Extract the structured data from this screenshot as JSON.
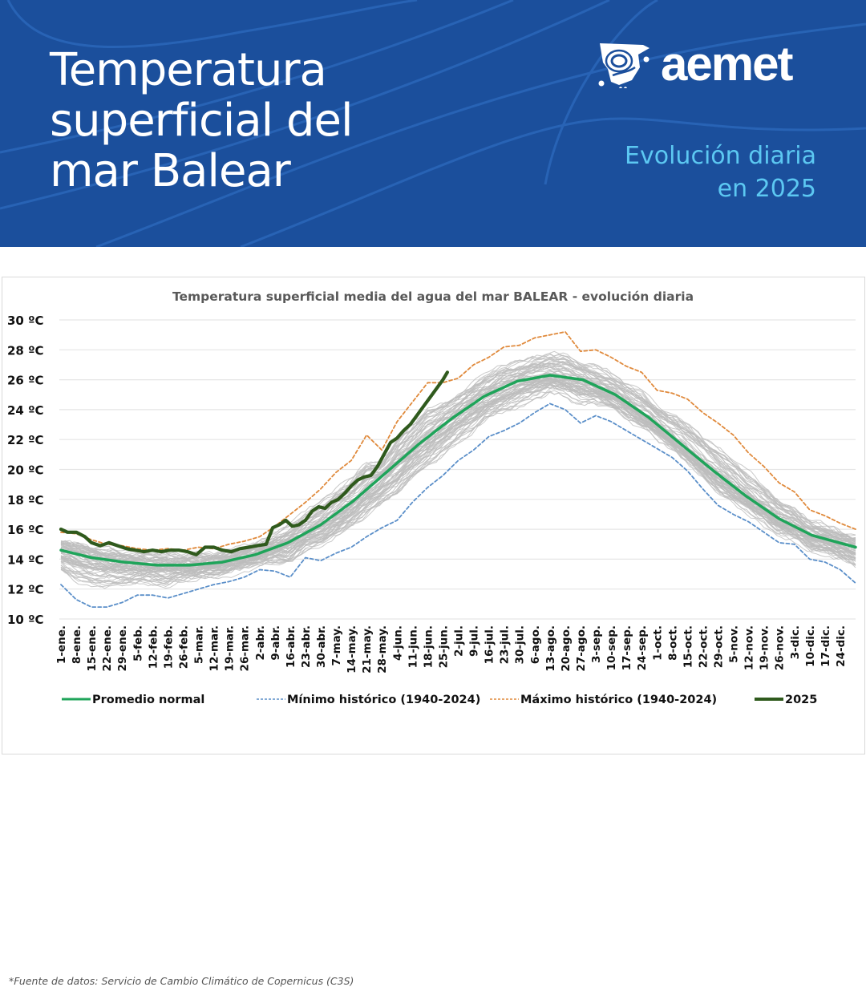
{
  "header": {
    "title_lines": [
      "Temperatura",
      "superficial del",
      "mar Balear"
    ],
    "logo_text": "aemet",
    "logo_icon": "aemet-spain-map-logo-icon",
    "subtitle_lines": [
      "Evolución diaria",
      "en 2025"
    ],
    "colors": {
      "background": "#1b4f9c",
      "title": "#ffffff",
      "subtitle": "#5cc8f2"
    }
  },
  "source_note": "*Fuente de datos: Servicio de Cambio Climático de Copernicus (C3S)",
  "chart_data": {
    "type": "line",
    "title": "Temperatura superficial media del agua del mar BALEAR - evolución diaria",
    "xlabel": "",
    "ylabel": "",
    "ylim": [
      10,
      30
    ],
    "yticks": [
      10,
      12,
      14,
      16,
      18,
      20,
      22,
      24,
      26,
      28,
      30
    ],
    "ytick_labels": [
      "10 ºC",
      "12 ºC",
      "14 ºC",
      "16 ºC",
      "18 ºC",
      "20 ºC",
      "22 ºC",
      "24 ºC",
      "26 ºC",
      "28 ºC",
      "30 ºC"
    ],
    "xlim_day_of_year": [
      1,
      365
    ],
    "grid": "horizontal",
    "legend_position": "bottom",
    "xtick_labels": [
      "1-ene.",
      "8-ene.",
      "15-ene.",
      "22-ene.",
      "29-ene.",
      "5-feb.",
      "12-feb.",
      "19-feb.",
      "26-feb.",
      "5-mar.",
      "12-mar.",
      "19-mar.",
      "26-mar.",
      "2-abr.",
      "9-abr.",
      "16-abr.",
      "23-abr.",
      "30-abr.",
      "7-may.",
      "14-may.",
      "21-may.",
      "28-may.",
      "4-jun.",
      "11-jun.",
      "18-jun.",
      "25-jun.",
      "2-jul.",
      "9-jul.",
      "16-jul.",
      "23-jul.",
      "30-jul.",
      "6-ago.",
      "13-ago.",
      "20-ago.",
      "27-ago.",
      "3-sep.",
      "10-sep.",
      "17-sep.",
      "24-sep.",
      "1-oct.",
      "8-oct.",
      "15-oct.",
      "22-oct.",
      "29-oct.",
      "5-nov.",
      "12-nov.",
      "19-nov.",
      "26-nov.",
      "3-dic.",
      "10-dic.",
      "17-dic.",
      "24-dic."
    ],
    "series": [
      {
        "name": "Promedio normal",
        "color": "#1fa45a",
        "style": "solid",
        "x": [
          1,
          15,
          30,
          45,
          60,
          75,
          90,
          105,
          120,
          135,
          150,
          165,
          180,
          195,
          210,
          225,
          240,
          255,
          270,
          285,
          300,
          315,
          330,
          345,
          365
        ],
        "values": [
          14.6,
          14.1,
          13.8,
          13.6,
          13.6,
          13.8,
          14.3,
          15.1,
          16.3,
          17.9,
          19.8,
          21.7,
          23.4,
          24.9,
          25.9,
          26.3,
          26.0,
          25.0,
          23.5,
          21.7,
          19.9,
          18.2,
          16.7,
          15.6,
          14.8
        ]
      },
      {
        "name": "Mínimo histórico (1940-2024)",
        "color": "#5b8fc9",
        "style": "dashed",
        "x": [
          1,
          8,
          15,
          22,
          29,
          36,
          43,
          50,
          57,
          64,
          71,
          78,
          85,
          92,
          99,
          106,
          113,
          120,
          127,
          134,
          141,
          148,
          155,
          162,
          169,
          176,
          183,
          190,
          197,
          204,
          211,
          218,
          225,
          232,
          239,
          246,
          253,
          260,
          267,
          274,
          281,
          288,
          295,
          302,
          309,
          316,
          323,
          330,
          337,
          344,
          351,
          358,
          365
        ],
        "values": [
          12.3,
          11.3,
          10.8,
          10.8,
          11.1,
          11.6,
          11.6,
          11.4,
          11.7,
          12.0,
          12.3,
          12.5,
          12.8,
          13.3,
          13.2,
          12.8,
          14.1,
          13.9,
          14.4,
          14.8,
          15.5,
          16.1,
          16.6,
          17.8,
          18.8,
          19.6,
          20.6,
          21.3,
          22.2,
          22.6,
          23.1,
          23.8,
          24.4,
          24.0,
          23.1,
          23.6,
          23.2,
          22.6,
          22.0,
          21.4,
          20.8,
          19.9,
          18.7,
          17.6,
          17.0,
          16.5,
          15.8,
          15.1,
          15.0,
          14.0,
          13.8,
          13.3,
          12.4
        ]
      },
      {
        "name": "Máximo histórico (1940-2024)",
        "color": "#e08a3c",
        "style": "dashed",
        "x": [
          1,
          8,
          15,
          22,
          29,
          36,
          43,
          50,
          57,
          64,
          71,
          78,
          85,
          92,
          99,
          106,
          113,
          120,
          127,
          134,
          141,
          148,
          155,
          162,
          169,
          176,
          183,
          190,
          197,
          204,
          211,
          218,
          225,
          232,
          239,
          246,
          253,
          260,
          267,
          274,
          281,
          288,
          295,
          302,
          309,
          316,
          323,
          330,
          337,
          344,
          351,
          358,
          365
        ],
        "values": [
          15.8,
          15.7,
          15.3,
          15.0,
          14.9,
          14.7,
          14.6,
          14.7,
          14.6,
          14.8,
          14.7,
          15.0,
          15.2,
          15.5,
          16.2,
          17.0,
          17.8,
          18.7,
          19.8,
          20.6,
          22.3,
          21.3,
          23.2,
          24.5,
          25.8,
          25.8,
          26.1,
          27.0,
          27.5,
          28.2,
          28.3,
          28.8,
          29.0,
          29.2,
          27.9,
          28.0,
          27.5,
          26.9,
          26.5,
          25.3,
          25.1,
          24.7,
          23.8,
          23.1,
          22.3,
          21.1,
          20.2,
          19.1,
          18.5,
          17.3,
          16.9,
          16.4,
          16.0
        ]
      },
      {
        "name": "2025",
        "color": "#2f5a1d",
        "style": "solid",
        "x": [
          1,
          4,
          8,
          12,
          15,
          19,
          23,
          27,
          31,
          35,
          39,
          43,
          47,
          51,
          55,
          59,
          63,
          67,
          71,
          75,
          79,
          83,
          87,
          91,
          95,
          98,
          101,
          104,
          107,
          110,
          113,
          116,
          119,
          122,
          125,
          128,
          131,
          134,
          137,
          140,
          143,
          146,
          149,
          152,
          155,
          158,
          161,
          164,
          167,
          170,
          173,
          176,
          178
        ],
        "values": [
          16.0,
          15.8,
          15.8,
          15.5,
          15.1,
          14.9,
          15.1,
          14.9,
          14.7,
          14.6,
          14.5,
          14.6,
          14.5,
          14.6,
          14.6,
          14.5,
          14.3,
          14.8,
          14.8,
          14.6,
          14.5,
          14.7,
          14.8,
          14.9,
          15.0,
          16.1,
          16.3,
          16.6,
          16.2,
          16.3,
          16.6,
          17.2,
          17.5,
          17.4,
          17.8,
          18.0,
          18.4,
          18.9,
          19.3,
          19.5,
          19.6,
          20.2,
          21.0,
          21.8,
          22.1,
          22.6,
          23.0,
          23.6,
          24.2,
          24.8,
          25.4,
          26.0,
          26.5
        ]
      }
    ],
    "background_series_note": "grey lines: individual years 1940-2024"
  }
}
